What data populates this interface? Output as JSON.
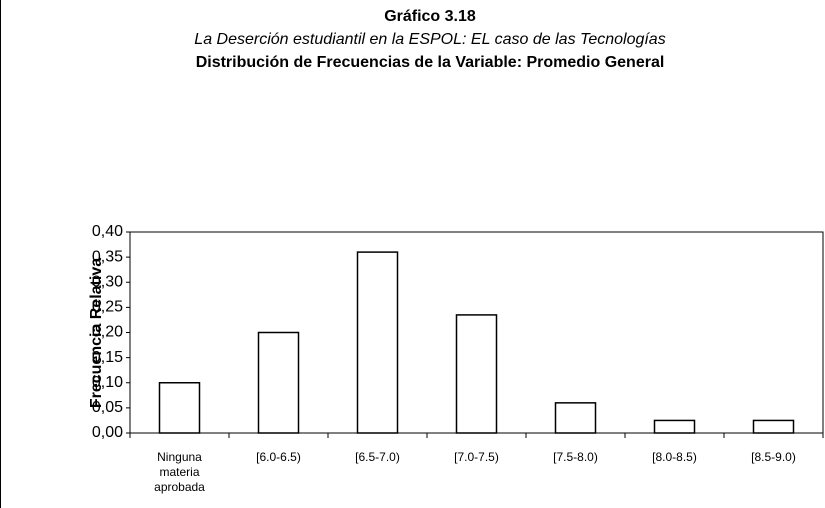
{
  "chart_data": {
    "type": "bar",
    "title": "Gráfico 3.18",
    "subtitle": "La Deserción estudiantil en la ESPOL: EL caso de las Tecnologías",
    "subtitle2": "Distribución de Frecuencias de la Variable: Promedio General",
    "y_label": "Frecuencia Relativa",
    "categories": [
      "Ninguna materia aprobada",
      "[6.0-6.5)",
      "[6.5-7.0)",
      "[7.0-7.5)",
      "[7.5-8.0)",
      "[8.0-8.5)",
      "[8.5-9.0)"
    ],
    "values": [
      0.1,
      0.2,
      0.36,
      0.235,
      0.06,
      0.025,
      0.025
    ],
    "color": "#ffffff",
    "ylim": [
      0,
      0.4
    ],
    "yticks": [
      {
        "value": 0,
        "label": "0,00"
      },
      {
        "value": 0.05,
        "label": "0,05"
      },
      {
        "value": 0.1,
        "label": "0,10"
      },
      {
        "value": 0.15,
        "label": "0,15"
      },
      {
        "value": 0.2,
        "label": "0,20"
      },
      {
        "value": 0.25,
        "label": "0,25"
      },
      {
        "value": 0.3,
        "label": "0,30"
      },
      {
        "value": 0.35,
        "label": "0,35"
      },
      {
        "value": 0.4,
        "label": "0,40"
      }
    ],
    "grid": false
  }
}
